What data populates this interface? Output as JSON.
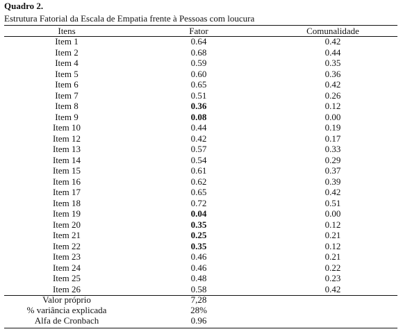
{
  "caption": {
    "number": "Quadro 2.",
    "title": "Estrutura Fatorial da Escala de Empatia frente à Pessoas com loucura"
  },
  "table": {
    "headers": [
      "Itens",
      "Fator",
      "Comunalidade"
    ],
    "rows": [
      {
        "item": "Item 1",
        "fator": "0.64",
        "comunalidade": "0.42",
        "bold": false
      },
      {
        "item": "Item 2",
        "fator": "0.68",
        "comunalidade": "0.44",
        "bold": false
      },
      {
        "item": "Item 4",
        "fator": "0.59",
        "comunalidade": "0.35",
        "bold": false
      },
      {
        "item": "Item 5",
        "fator": "0.60",
        "comunalidade": "0.36",
        "bold": false
      },
      {
        "item": "Item 6",
        "fator": "0.65",
        "comunalidade": "0.42",
        "bold": false
      },
      {
        "item": "Item 7",
        "fator": "0.51",
        "comunalidade": "0.26",
        "bold": false
      },
      {
        "item": "Item 8",
        "fator": "0.36",
        "comunalidade": "0.12",
        "bold": true
      },
      {
        "item": "Item 9",
        "fator": "0.08",
        "comunalidade": "0.00",
        "bold": true
      },
      {
        "item": "Item 10",
        "fator": "0.44",
        "comunalidade": "0.19",
        "bold": false
      },
      {
        "item": "Item 12",
        "fator": "0.42",
        "comunalidade": "0.17",
        "bold": false
      },
      {
        "item": "Item 13",
        "fator": "0.57",
        "comunalidade": "0.33",
        "bold": false
      },
      {
        "item": "Item 14",
        "fator": "0.54",
        "comunalidade": "0.29",
        "bold": false
      },
      {
        "item": "Item 15",
        "fator": "0.61",
        "comunalidade": "0.37",
        "bold": false
      },
      {
        "item": "Item 16",
        "fator": "0.62",
        "comunalidade": "0.39",
        "bold": false
      },
      {
        "item": "Item 17",
        "fator": "0.65",
        "comunalidade": "0.42",
        "bold": false
      },
      {
        "item": "Item 18",
        "fator": "0.72",
        "comunalidade": "0.51",
        "bold": false
      },
      {
        "item": "Item 19",
        "fator": "0.04",
        "comunalidade": "0.00",
        "bold": true
      },
      {
        "item": "Item 20",
        "fator": "0.35",
        "comunalidade": "0.12",
        "bold": true
      },
      {
        "item": "Item 21",
        "fator": "0.25",
        "comunalidade": "0.21",
        "bold": true
      },
      {
        "item": "Item 22",
        "fator": "0.35",
        "comunalidade": "0.12",
        "bold": true
      },
      {
        "item": "Item 23",
        "fator": "0.46",
        "comunalidade": "0.21",
        "bold": false
      },
      {
        "item": "Item 24",
        "fator": "0.46",
        "comunalidade": "0.22",
        "bold": false
      },
      {
        "item": "Item 25",
        "fator": "0.48",
        "comunalidade": "0.23",
        "bold": false
      },
      {
        "item": "Item 26",
        "fator": "0.58",
        "comunalidade": "0.42",
        "bold": false
      }
    ],
    "summary": [
      {
        "label": "Valor próprio",
        "value": "7,28"
      },
      {
        "label": "% variância explicada",
        "value": "28%"
      },
      {
        "label": "Alfa de Cronbach",
        "value": "0.96"
      }
    ]
  }
}
